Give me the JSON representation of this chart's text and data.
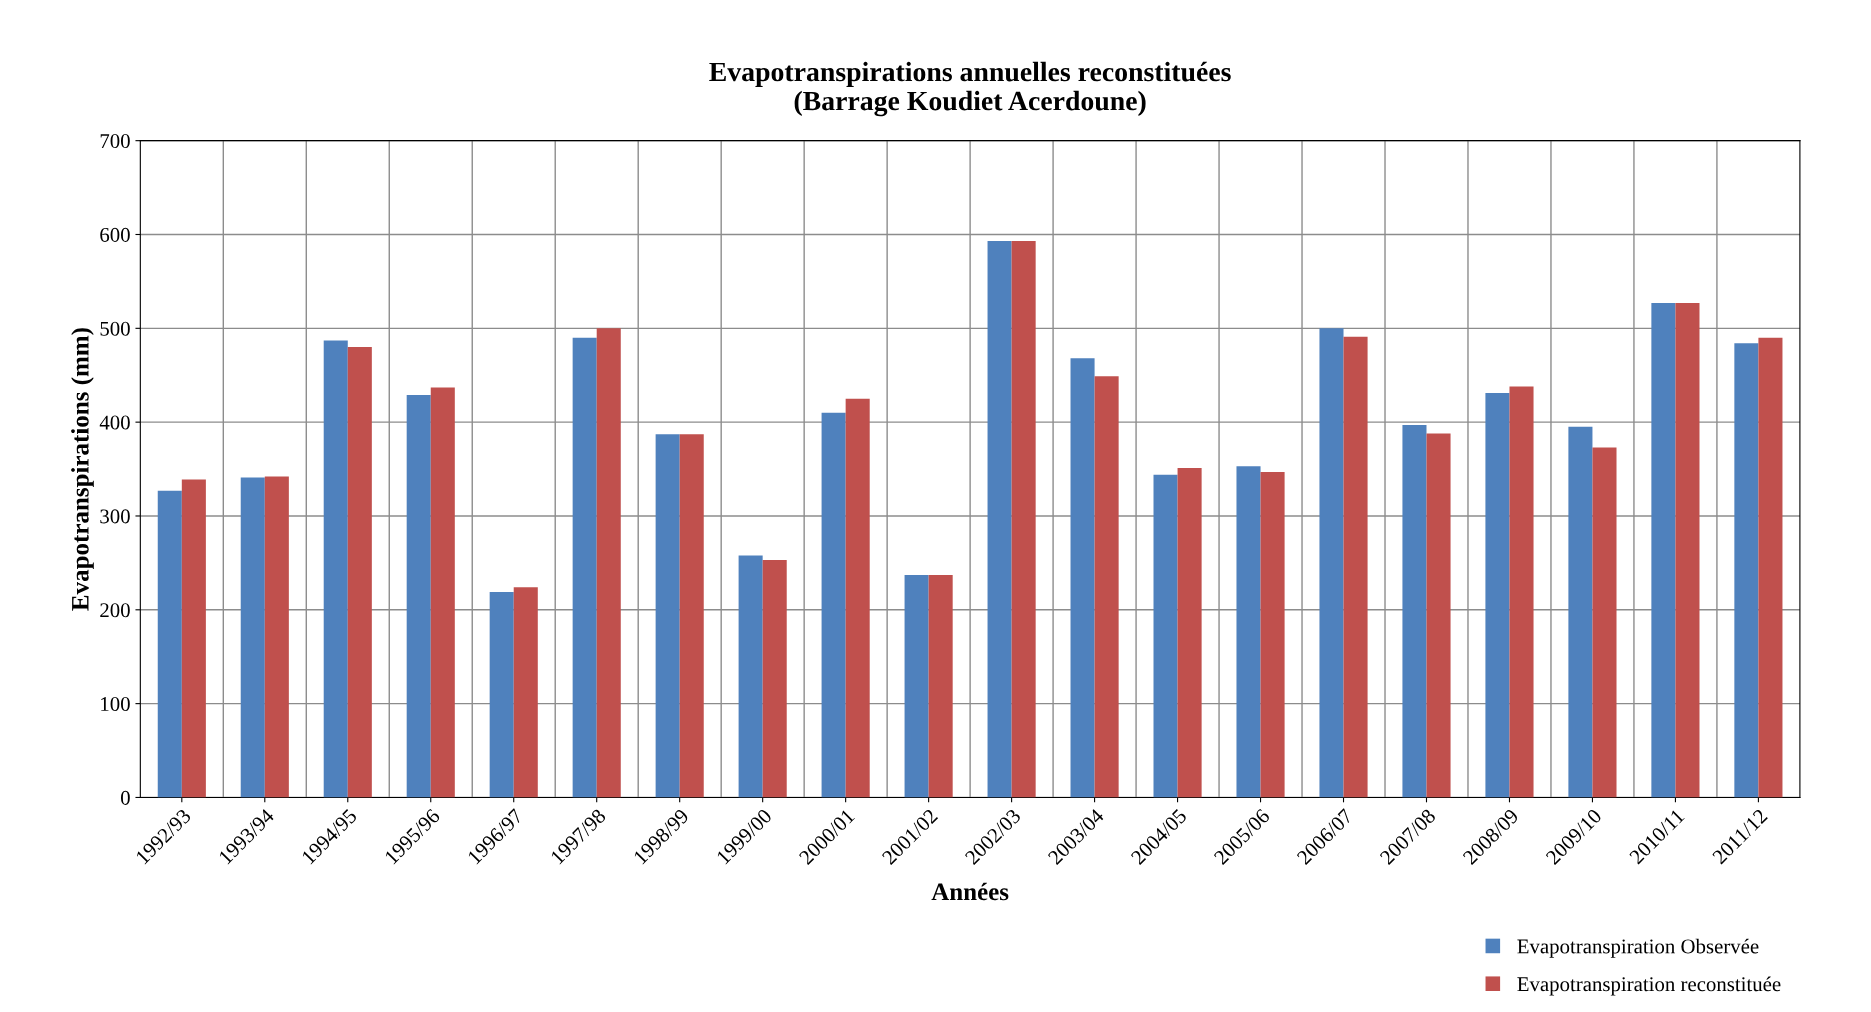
{
  "chart_data": {
    "type": "bar",
    "title": "Evapotranspirations annuelles reconstituées\n(Barrage Koudiet Acerdoune)",
    "xlabel": "Années",
    "ylabel": "Evapotranspirations (mm)",
    "categories": [
      "1992/93",
      "1993/94",
      "1994/95",
      "1995/96",
      "1996/97",
      "1997/98",
      "1998/99",
      "1999/00",
      "2000/01",
      "2001/02",
      "2002/03",
      "2003/04",
      "2004/05",
      "2005/06",
      "2006/07",
      "2007/08",
      "2008/09",
      "2009/10",
      "2010/11",
      "2011/12"
    ],
    "series": [
      {
        "name": "Evapotranspiration Observée",
        "color": "#4f81bd",
        "values": [
          327,
          341,
          487,
          429,
          219,
          490,
          387,
          258,
          410,
          237,
          593,
          468,
          344,
          353,
          500,
          397,
          431,
          395,
          527,
          484
        ]
      },
      {
        "name": "Evapotranspiration reconstituée",
        "color": "#c0504d",
        "values": [
          339,
          342,
          480,
          437,
          224,
          500,
          387,
          253,
          425,
          237,
          593,
          449,
          351,
          347,
          491,
          388,
          438,
          373,
          527,
          490
        ]
      }
    ],
    "ylim": [
      0,
      700
    ],
    "yticks": [
      0,
      100,
      200,
      300,
      400,
      500,
      600,
      700
    ],
    "grid": true,
    "legend": "bottom right"
  }
}
